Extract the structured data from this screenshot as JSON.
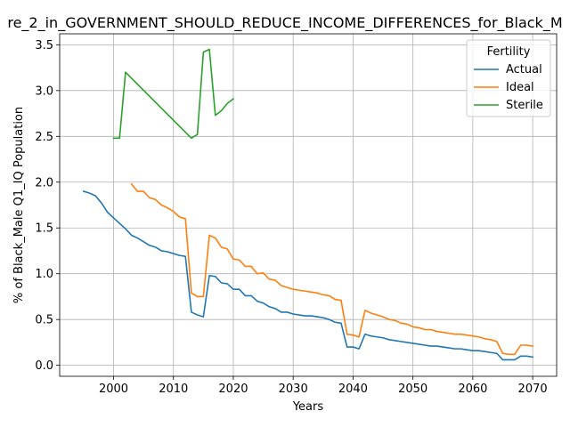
{
  "chart_data": {
    "type": "line",
    "title": "re_2_in_GOVERNMENT_SHOULD_REDUCE_INCOME_DIFFERENCES_for_Black_M",
    "xlabel": "Years",
    "ylabel": "% of Black_Male Q1_IQ Population",
    "xlim": [
      1991,
      2074
    ],
    "ylim": [
      -0.12,
      3.62
    ],
    "xticks": [
      2000,
      2010,
      2020,
      2030,
      2040,
      2050,
      2060,
      2070
    ],
    "yticks": [
      0.0,
      0.5,
      1.0,
      1.5,
      2.0,
      2.5,
      3.0,
      3.5
    ],
    "xtick_labels": [
      "2000",
      "2010",
      "2020",
      "2030",
      "2040",
      "2050",
      "2060",
      "2070"
    ],
    "ytick_labels": [
      "0.0",
      "0.5",
      "1.0",
      "1.5",
      "2.0",
      "2.5",
      "3.0",
      "3.5"
    ],
    "grid": true,
    "legend": {
      "title": "Fertility",
      "placement": "top-right"
    },
    "series": [
      {
        "name": "Actual",
        "color": "#1f77b4",
        "x": [
          1995,
          1996,
          1997,
          1998,
          1999,
          2000,
          2001,
          2002,
          2003,
          2004,
          2005,
          2006,
          2007,
          2008,
          2009,
          2010,
          2011,
          2012,
          2013,
          2014,
          2015,
          2016,
          2017,
          2018,
          2019,
          2020,
          2021,
          2022,
          2023,
          2024,
          2025,
          2026,
          2027,
          2028,
          2029,
          2030,
          2031,
          2032,
          2033,
          2034,
          2035,
          2036,
          2037,
          2038,
          2039,
          2040,
          2041,
          2042,
          2043,
          2044,
          2045,
          2046,
          2047,
          2048,
          2049,
          2050,
          2051,
          2052,
          2053,
          2054,
          2055,
          2056,
          2057,
          2058,
          2059,
          2060,
          2061,
          2062,
          2063,
          2064,
          2065,
          2066,
          2067,
          2068,
          2069,
          2070
        ],
        "y": [
          1.9,
          1.88,
          1.85,
          1.77,
          1.67,
          1.61,
          1.55,
          1.49,
          1.42,
          1.39,
          1.35,
          1.31,
          1.29,
          1.25,
          1.24,
          1.22,
          1.2,
          1.19,
          0.58,
          0.55,
          0.53,
          0.98,
          0.97,
          0.9,
          0.89,
          0.83,
          0.83,
          0.76,
          0.76,
          0.7,
          0.68,
          0.64,
          0.62,
          0.58,
          0.58,
          0.56,
          0.55,
          0.54,
          0.54,
          0.53,
          0.52,
          0.5,
          0.47,
          0.46,
          0.2,
          0.2,
          0.18,
          0.34,
          0.32,
          0.31,
          0.3,
          0.28,
          0.27,
          0.26,
          0.25,
          0.24,
          0.23,
          0.22,
          0.21,
          0.21,
          0.2,
          0.19,
          0.18,
          0.18,
          0.17,
          0.16,
          0.16,
          0.15,
          0.14,
          0.13,
          0.06,
          0.06,
          0.06,
          0.1,
          0.1,
          0.09
        ]
      },
      {
        "name": "Ideal",
        "color": "#ff7f0e",
        "x": [
          2003,
          2004,
          2005,
          2006,
          2007,
          2008,
          2009,
          2010,
          2011,
          2012,
          2013,
          2014,
          2015,
          2016,
          2017,
          2018,
          2019,
          2020,
          2021,
          2022,
          2023,
          2024,
          2025,
          2026,
          2027,
          2028,
          2029,
          2030,
          2031,
          2032,
          2033,
          2034,
          2035,
          2036,
          2037,
          2038,
          2039,
          2040,
          2041,
          2042,
          2043,
          2044,
          2045,
          2046,
          2047,
          2048,
          2049,
          2050,
          2051,
          2052,
          2053,
          2054,
          2055,
          2056,
          2057,
          2058,
          2059,
          2060,
          2061,
          2062,
          2063,
          2064,
          2065,
          2066,
          2067,
          2068,
          2069,
          2070
        ],
        "y": [
          1.98,
          1.9,
          1.9,
          1.83,
          1.81,
          1.75,
          1.72,
          1.68,
          1.62,
          1.6,
          0.79,
          0.75,
          0.75,
          1.42,
          1.39,
          1.29,
          1.27,
          1.16,
          1.15,
          1.08,
          1.08,
          1.0,
          1.01,
          0.94,
          0.93,
          0.87,
          0.85,
          0.83,
          0.82,
          0.81,
          0.8,
          0.79,
          0.77,
          0.76,
          0.72,
          0.71,
          0.34,
          0.33,
          0.31,
          0.6,
          0.57,
          0.55,
          0.53,
          0.5,
          0.49,
          0.46,
          0.45,
          0.42,
          0.41,
          0.39,
          0.39,
          0.37,
          0.36,
          0.35,
          0.34,
          0.34,
          0.33,
          0.32,
          0.31,
          0.29,
          0.28,
          0.26,
          0.13,
          0.12,
          0.12,
          0.22,
          0.22,
          0.21
        ]
      },
      {
        "name": "Sterile",
        "color": "#2ca02c",
        "x": [
          2000,
          2001,
          2002,
          2013,
          2014,
          2015,
          2016,
          2017,
          2018,
          2019,
          2020
        ],
        "y": [
          2.48,
          2.48,
          3.2,
          2.48,
          2.52,
          3.42,
          3.45,
          2.73,
          2.78,
          2.86,
          2.91
        ]
      }
    ]
  }
}
